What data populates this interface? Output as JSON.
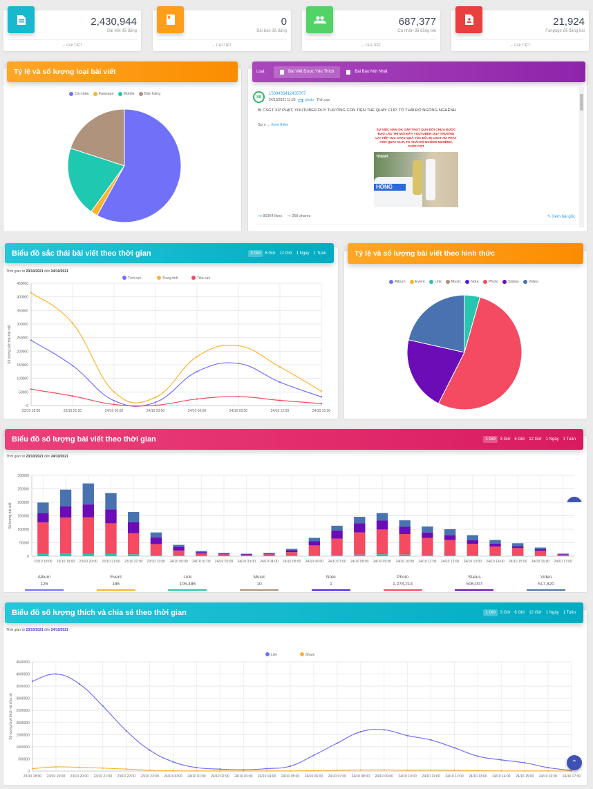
{
  "stats": [
    {
      "value": "2,430,944",
      "label": "Bài viết đã đăng",
      "more": "CHI TIẾT",
      "icon": "document-icon",
      "color": "#00acc1"
    },
    {
      "value": "0",
      "label": "Bài báo đã đăng",
      "more": "CHI TIẾT",
      "icon": "newspaper-icon",
      "color": "#fb8c00"
    },
    {
      "value": "687,377",
      "label": "Cá nhân đã đăng bài",
      "more": "CHI TIẾT",
      "icon": "people-icon",
      "color": "#4caf50"
    },
    {
      "value": "21,924",
      "label": "Fanpage đã đăng bài",
      "more": "CHI TIẾT",
      "icon": "contact-file-icon",
      "color": "#e53935"
    }
  ],
  "post_type_panel": {
    "title": "Tỷ lệ và số lượng loại bài viết"
  },
  "feed_panel": {
    "filter_label": "Loại:",
    "tabs": [
      {
        "label": "Bài Viết Được Yêu Thích",
        "active": true
      },
      {
        "label": "Bài Báo Mới Nhất",
        "active": false
      }
    ],
    "post": {
      "author_id": "1509435412435707",
      "datetime": "24/10/2021 11:20",
      "type": "photo",
      "sentiment": "Tích cực",
      "title": "BỊ CSGT XỬ PHẠT, YOUTUBER DUY THƯỜNG CÒN TIỆN THỂ QUAY CLIP, TỎ THÁI ĐỘ NGÔNG NGHÊNH",
      "excerpt": "Sự v ...",
      "read_more": "Xem thêm",
      "image_caption": "SỰ VIỆC NAM DK GẶP TNGT QUA ĐỜI CHƯA ĐƯỢC BAO LÂU THÌ MỚI ĐÂY YOUTUBER DUY THƯỜNG LẠI TIẾP TỤC CHẠY QUÁ TỐC ĐỘ, BỊ CSGT XỬ PHẠT CÒN QUAY CLIP, TỎ THÁI ĐỘ NGÔNG NGHÊNH, CƯỜI CỢT",
      "image_watermark": "THANH",
      "image_car_text": "HÒNG",
      "likes": "80364 likes",
      "shares": "258 shares",
      "view_original": "Xem bài gốc"
    }
  },
  "sentiment_panel": {
    "title": "Biểu đồ sắc thái bài viết theo thời gian",
    "tabs": [
      {
        "label": "3 Giờ",
        "active": true
      },
      {
        "label": "6 Giờ",
        "active": false
      },
      {
        "label": "12 Giờ",
        "active": false
      },
      {
        "label": "1 Ngày",
        "active": false
      },
      {
        "label": "1 Tuần",
        "active": false
      }
    ],
    "range_prefix": "Thời gian từ",
    "range_from": "23/10/2021",
    "range_mid": "đến",
    "range_to": "24/10/2021"
  },
  "format_panel": {
    "title": "Tỷ lệ và số lượng bài viết theo hình thức"
  },
  "count_panel": {
    "title": "Biểu đồ số lượng bài viết theo thời gian",
    "tabs": [
      {
        "label": "1 Giờ",
        "active": true
      },
      {
        "label": "3 Giờ",
        "active": false
      },
      {
        "label": "6 Giờ",
        "active": false
      },
      {
        "label": "12 Giờ",
        "active": false
      },
      {
        "label": "1 Ngày",
        "active": false
      },
      {
        "label": "1 Tuần",
        "active": false
      }
    ],
    "range_prefix": "Thời gian từ",
    "range_from": "23/10/2021",
    "range_mid": "đến",
    "range_to": "24/10/2021",
    "totals": [
      {
        "name": "Album",
        "value": "126",
        "color": "#7070ff"
      },
      {
        "name": "Event",
        "value": "186",
        "color": "#ffb22b"
      },
      {
        "name": "Link",
        "value": "105,486",
        "color": "#26c6b0"
      },
      {
        "name": "Music",
        "value": "10",
        "color": "#b0907a"
      },
      {
        "name": "Note",
        "value": "1",
        "color": "#5020e0"
      },
      {
        "name": "Photo",
        "value": "1,278,214",
        "color": "#f44b63"
      },
      {
        "name": "Status",
        "value": "506,007",
        "color": "#6c0cb6"
      },
      {
        "name": "Video",
        "value": "517,820",
        "color": "#4a72b0"
      }
    ]
  },
  "engagement_panel": {
    "title": "Biểu đồ số lượng thích và chia sẻ theo thời gian",
    "tabs": [
      {
        "label": "1 Giờ",
        "active": true
      },
      {
        "label": "3 Giờ",
        "active": false
      },
      {
        "label": "6 Giờ",
        "active": false
      },
      {
        "label": "12 Giờ",
        "active": false
      },
      {
        "label": "1 Ngày",
        "active": false
      },
      {
        "label": "1 Tuần",
        "active": false
      }
    ],
    "range_prefix": "Thời gian từ",
    "range_from": "23/10/2021",
    "range_mid": "đến",
    "range_to": "24/10/2021"
  },
  "scroll_top_icon": "chevron-up-icon",
  "chart_data": [
    {
      "id": "post_type_pie",
      "type": "pie",
      "title": "Tỷ lệ và số lượng loại bài viết",
      "legend_position": "top",
      "labels": [
        "Cá nhân",
        "Fanpage",
        "Mobile",
        "Bán hàng"
      ],
      "values": [
        58,
        2,
        20,
        20
      ],
      "colors": [
        "#7070f8",
        "#ffb22b",
        "#1fc8b0",
        "#b0937c"
      ]
    },
    {
      "id": "sentiment_line",
      "type": "line",
      "title": "Biểu đồ sắc thái bài viết theo thời gian",
      "ylabel": "Số lượng sắc thái bài viết",
      "xlabel": "",
      "x": [
        "23/10 18:00",
        "23/10 21:00",
        "24/10 00:00",
        "24/10 03:00",
        "24/10 06:00",
        "24/10 09:00",
        "24/10 12:00",
        "24/10 15:00"
      ],
      "ylim": [
        0,
        450000
      ],
      "yticks": [
        0,
        50000,
        100000,
        150000,
        200000,
        250000,
        300000,
        350000,
        400000,
        450000
      ],
      "grid": true,
      "legend_position": "top",
      "series": [
        {
          "name": "Tích cực",
          "color": "#7070f8",
          "values": [
            240000,
            147000,
            18000,
            12000,
            125000,
            155000,
            86000,
            32000
          ]
        },
        {
          "name": "Trung tính",
          "color": "#ffb22b",
          "values": [
            415000,
            303000,
            50000,
            30000,
            180000,
            220000,
            142000,
            53000
          ]
        },
        {
          "name": "Tiêu cực",
          "color": "#f44b63",
          "values": [
            60000,
            35000,
            4000,
            1000,
            24000,
            33000,
            19000,
            7000
          ]
        }
      ]
    },
    {
      "id": "format_pie",
      "type": "pie",
      "title": "Tỷ lệ và số lượng bài viết theo hình thức",
      "legend_position": "top",
      "labels": [
        "Album",
        "Event",
        "Link",
        "Music",
        "Note",
        "Photo",
        "Status",
        "Video"
      ],
      "values": [
        126,
        186,
        105486,
        10,
        1,
        1278214,
        506007,
        517820
      ],
      "colors": [
        "#7070ff",
        "#ffb22b",
        "#26c6b0",
        "#b0907a",
        "#5020e0",
        "#f44b63",
        "#6c0cb6",
        "#4a72b0"
      ]
    },
    {
      "id": "post_count_bar",
      "type": "bar",
      "stacked": true,
      "title": "Biểu đồ số lượng bài viết theo thời gian",
      "ylabel": "Số lượng bài viết",
      "ylim": [
        0,
        300000
      ],
      "yticks": [
        0,
        50000,
        100000,
        150000,
        200000,
        250000,
        300000
      ],
      "grid": true,
      "categories": [
        "23/10 18:00",
        "23/10 19:00",
        "23/10 20:00",
        "23/10 21:00",
        "23/10 22:00",
        "23/10 23:00",
        "24/10 00:00",
        "24/10 01:00",
        "24/10 02:00",
        "24/10 03:00",
        "24/10 04:00",
        "24/10 05:00",
        "24/10 06:00",
        "24/10 07:00",
        "24/10 08:00",
        "24/10 09:00",
        "24/10 10:00",
        "24/10 11:00",
        "24/10 12:00",
        "24/10 13:00",
        "24/10 14:00",
        "24/10 15:00",
        "24/10 16:00",
        "24/10 17:00"
      ],
      "series": [
        {
          "name": "Link",
          "color": "#26c6b0",
          "values": [
            9000,
            10000,
            9000,
            9000,
            7000,
            4000,
            2000,
            1000,
            1000,
            500,
            1000,
            2000,
            3000,
            5000,
            6000,
            7000,
            6000,
            5000,
            4000,
            3000,
            2000,
            2000,
            1000,
            500
          ]
        },
        {
          "name": "Photo",
          "color": "#f44b63",
          "values": [
            116000,
            133000,
            135000,
            113000,
            78000,
            41000,
            19000,
            9000,
            6000,
            4000,
            6000,
            13000,
            37000,
            60000,
            82000,
            92000,
            76000,
            63000,
            56000,
            43000,
            34000,
            28000,
            19000,
            5000
          ]
        },
        {
          "name": "Status",
          "color": "#6c0cb6",
          "values": [
            34000,
            42000,
            48000,
            51000,
            41000,
            25000,
            14000,
            5000,
            3000,
            3000,
            3000,
            7000,
            16000,
            30000,
            34000,
            33000,
            27000,
            20000,
            17000,
            13000,
            11000,
            7000,
            6000,
            2000
          ]
        },
        {
          "name": "Video",
          "color": "#4a72b0",
          "values": [
            40000,
            62000,
            78000,
            61000,
            38000,
            18000,
            7000,
            4000,
            2000,
            1500,
            2000,
            5000,
            12000,
            18000,
            24000,
            28000,
            24000,
            22000,
            23000,
            19000,
            13000,
            11000,
            6000,
            2000
          ]
        }
      ]
    },
    {
      "id": "engagement_line",
      "type": "line",
      "title": "Biểu đồ số lượng thích và chia sẻ theo thời gian",
      "ylabel": "Số lượng lượt thích và chia sẻ",
      "ylim": [
        0,
        4500000
      ],
      "yticks": [
        0,
        500000,
        1000000,
        1500000,
        2000000,
        2500000,
        3000000,
        3500000,
        4000000,
        4500000
      ],
      "grid": true,
      "legend_position": "top",
      "x": [
        "23/10 18:00",
        "23/10 19:00",
        "23/10 20:00",
        "23/10 21:00",
        "23/10 22:00",
        "23/10 23:00",
        "24/10 00:00",
        "24/10 01:00",
        "24/10 02:00",
        "24/10 03:00",
        "24/10 04:00",
        "24/10 05:00",
        "24/10 06:00",
        "24/10 07:00",
        "24/10 08:00",
        "24/10 09:00",
        "24/10 10:00",
        "24/10 11:00",
        "24/10 12:00",
        "24/10 13:00",
        "24/10 14:00",
        "24/10 15:00",
        "24/10 16:00",
        "24/10 17:00"
      ],
      "series": [
        {
          "name": "Like",
          "color": "#7070f8",
          "values": [
            3700000,
            4000000,
            3590000,
            2680000,
            1660000,
            860000,
            380000,
            140000,
            80000,
            50000,
            100000,
            200000,
            650000,
            1150000,
            1620000,
            1700000,
            1460000,
            1280000,
            960000,
            610000,
            460000,
            340000,
            140000,
            20000
          ]
        },
        {
          "name": "Share",
          "color": "#ffb22b",
          "values": [
            100000,
            170000,
            150000,
            120000,
            80000,
            30000,
            8000,
            4000,
            3000,
            2000,
            3000,
            5000,
            15000,
            30000,
            45000,
            48000,
            35000,
            38000,
            30000,
            15000,
            6000,
            5000,
            4000,
            2000
          ]
        }
      ]
    }
  ]
}
